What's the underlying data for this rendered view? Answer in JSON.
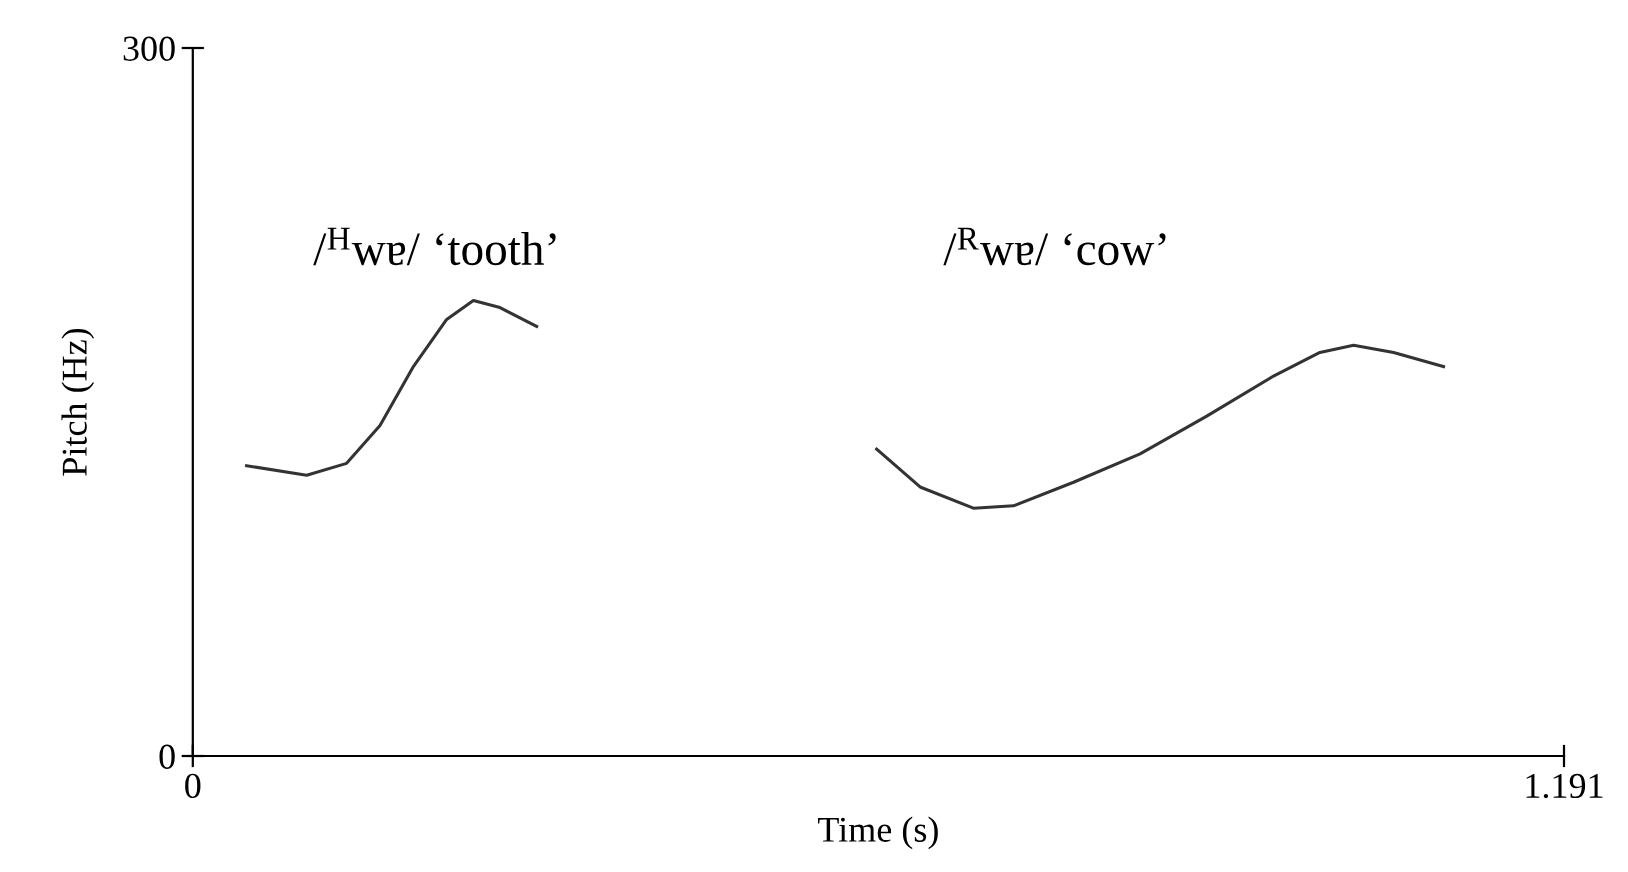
{
  "chart_data": {
    "type": "line",
    "xlabel": "Time (s)",
    "ylabel": "Pitch (Hz)",
    "xlim": [
      0,
      1.191
    ],
    "ylim": [
      0,
      300
    ],
    "xticks": [
      0,
      1.191
    ],
    "yticks": [
      0,
      300
    ],
    "grid": false,
    "legend": false,
    "marker": "none",
    "line_style": "solid",
    "series": [
      {
        "color": "#333333",
        "x": [
          0.0467,
          0.0989,
          0.1336,
          0.1626,
          0.1916,
          0.2205,
          0.2437,
          0.2668,
          0.2987
        ],
        "values": [
          123,
          119,
          124,
          140,
          165,
          185,
          193,
          190,
          182
        ]
      },
      {
        "color": "#333333",
        "x": [
          0.594,
          0.6317,
          0.678,
          0.7128,
          0.765,
          0.8228,
          0.8807,
          0.9387,
          0.979,
          1.0082,
          1.043,
          1.0864
        ],
        "values": [
          130,
          114,
          105,
          106,
          116,
          128,
          144,
          161,
          171,
          174,
          171,
          165
        ]
      }
    ],
    "annotations": [
      "/$^{H}$wɐ/ ‘tooth’",
      "/$^{R}$wɐ/ ‘cow’"
    ]
  }
}
